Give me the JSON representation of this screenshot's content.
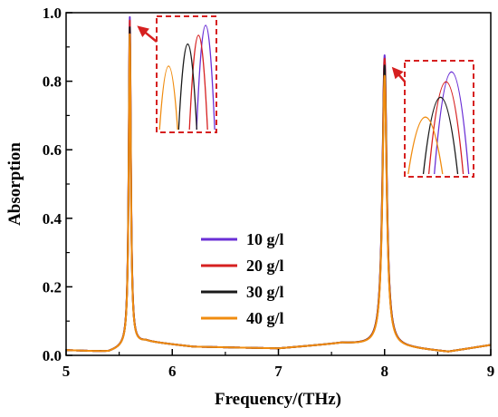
{
  "chart_data": {
    "type": "line",
    "xlabel": "Frequency/(THz)",
    "ylabel": "Absorption",
    "xlim": [
      5,
      9
    ],
    "ylim": [
      0,
      1.0
    ],
    "x_ticks": [
      "5",
      "6",
      "7",
      "8",
      "9"
    ],
    "y_ticks": [
      "0.0",
      "0.2",
      "0.4",
      "0.6",
      "0.8",
      "1.0"
    ],
    "grid": false,
    "legend_position": "center",
    "series": [
      {
        "name": "10 g/l",
        "color": "#6a2fd6",
        "peaks": [
          [
            5.6,
            0.98
          ],
          [
            8.0,
            0.87
          ]
        ]
      },
      {
        "name": "20 g/l",
        "color": "#d62020",
        "peaks": [
          [
            5.6,
            0.97
          ],
          [
            8.0,
            0.86
          ]
        ]
      },
      {
        "name": "30 g/l",
        "color": "#1a1a1a",
        "peaks": [
          [
            5.6,
            0.95
          ],
          [
            8.0,
            0.84
          ]
        ]
      },
      {
        "name": "40 g/l",
        "color": "#f08c10",
        "peaks": [
          [
            5.6,
            0.93
          ],
          [
            8.0,
            0.81
          ]
        ]
      }
    ],
    "baseline": [
      [
        5.0,
        0.015
      ],
      [
        5.4,
        0.01
      ],
      [
        5.75,
        0.04
      ],
      [
        6.2,
        0.025
      ],
      [
        7.0,
        0.02
      ],
      [
        7.6,
        0.035
      ],
      [
        8.25,
        0.02
      ],
      [
        8.6,
        0.01
      ],
      [
        9.0,
        0.03
      ]
    ],
    "inset_frame_color": "#d62020"
  }
}
